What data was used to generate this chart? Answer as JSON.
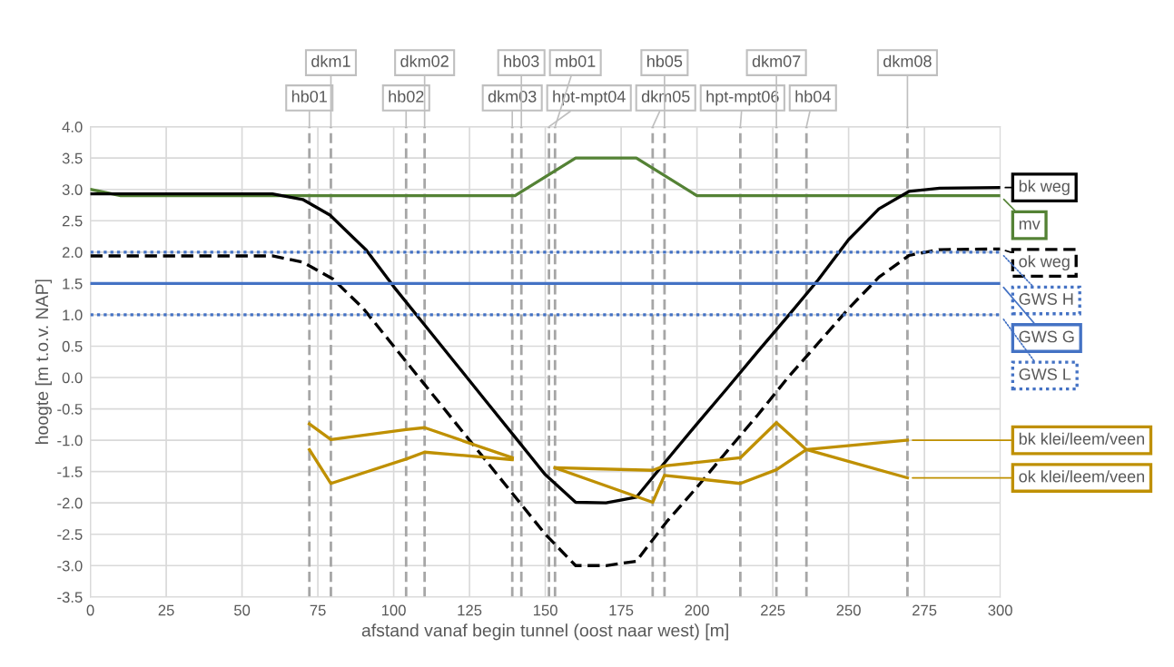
{
  "chart_data": {
    "type": "line",
    "xlabel": "afstand vanaf begin tunnel (oost naar west) [m]",
    "ylabel": "hoogte [m t.o.v. NAP]",
    "xlim": [
      0,
      300
    ],
    "xticks": [
      0,
      25,
      50,
      75,
      100,
      125,
      150,
      175,
      200,
      225,
      250,
      275,
      300
    ],
    "ylim": [
      -3.5,
      4.0
    ],
    "yticks": [
      {
        "value": -3.5,
        "label": "-3.5"
      },
      {
        "value": -3.0,
        "label": "-3.0"
      },
      {
        "value": -2.5,
        "label": "-2.5"
      },
      {
        "value": -2.0,
        "label": "-2.0"
      },
      {
        "value": -1.5,
        "label": "-1.5"
      },
      {
        "value": -1.0,
        "label": "-1.0"
      },
      {
        "value": -0.5,
        "label": "-0.5"
      },
      {
        "value": 0,
        "label": "0.0"
      },
      {
        "value": 0.5,
        "label": "0.5"
      },
      {
        "value": 1.0,
        "label": "1.0"
      },
      {
        "value": 1.5,
        "label": "1.5"
      },
      {
        "value": 2.0,
        "label": "2.0"
      },
      {
        "value": 2.5,
        "label": "2.5"
      },
      {
        "value": 3.0,
        "label": "3.0"
      },
      {
        "value": 3.5,
        "label": "3.5"
      },
      {
        "value": 4.0,
        "label": "4.0"
      }
    ],
    "grid": true,
    "legend": "right",
    "series": [
      {
        "name": "mv",
        "color": "#548235",
        "line_style": "solid",
        "x": [
          0,
          10,
          140,
          160,
          180,
          200,
          300
        ],
        "values": [
          3.0,
          2.9,
          2.9,
          3.5,
          3.5,
          2.9,
          2.9
        ]
      },
      {
        "name": "bk weg",
        "color": "#000000",
        "line_style": "solid",
        "x": [
          0,
          60,
          70,
          79,
          91,
          100,
          110,
          120,
          130,
          140,
          150,
          160,
          170,
          180,
          190,
          200,
          210,
          220,
          230,
          240,
          250,
          260,
          270,
          280,
          300
        ],
        "values": [
          2.93,
          2.93,
          2.84,
          2.59,
          2.03,
          1.45,
          0.85,
          0.25,
          -0.35,
          -0.95,
          -1.55,
          -1.99,
          -2.0,
          -1.91,
          -1.32,
          -0.74,
          -0.17,
          0.41,
          0.98,
          1.56,
          2.2,
          2.69,
          2.97,
          3.02,
          3.03
        ]
      },
      {
        "name": "ok weg",
        "color": "#000000",
        "line_style": "dashed",
        "x": [
          0,
          60,
          70,
          80,
          90,
          100,
          110,
          120,
          130,
          140,
          150,
          160,
          170,
          180,
          190,
          200,
          210,
          220,
          230,
          240,
          250,
          260,
          270,
          280,
          300
        ],
        "values": [
          1.94,
          1.94,
          1.84,
          1.57,
          1.1,
          0.5,
          -0.1,
          -0.7,
          -1.3,
          -1.9,
          -2.5,
          -3.0,
          -3.0,
          -2.93,
          -2.3,
          -1.75,
          -1.17,
          -0.6,
          0.0,
          0.55,
          1.1,
          1.6,
          1.95,
          2.04,
          2.05
        ]
      },
      {
        "name": "GWS H",
        "color": "#4472c4",
        "line_style": "dotted",
        "x": [
          0,
          300
        ],
        "values": [
          2.0,
          2.0
        ]
      },
      {
        "name": "GWS G",
        "color": "#4472c4",
        "line_style": "solid",
        "x": [
          0,
          300
        ],
        "values": [
          1.5,
          1.5
        ]
      },
      {
        "name": "GWS L",
        "color": "#4472c4",
        "line_style": "dotted",
        "x": [
          0,
          300
        ],
        "values": [
          1.0,
          1.0
        ]
      },
      {
        "name": "bk klei/leem/veen",
        "color": "#bf9000",
        "line_style": "solid",
        "x": [
          72.2,
          79.3,
          104.1,
          110.2,
          139.1,
          142.1,
          151.2,
          153.2,
          185.4,
          189.3,
          214.3,
          226.2,
          236.1,
          269.4
        ],
        "values": [
          -0.74,
          -0.99,
          -0.83,
          -0.8,
          -1.28,
          null,
          null,
          -1.44,
          -1.48,
          -1.41,
          -1.28,
          -0.72,
          -1.15,
          -1.0
        ]
      },
      {
        "name": "ok klei/leem/veen",
        "color": "#bf9000",
        "line_style": "solid",
        "x": [
          72.2,
          79.3,
          104.1,
          110.2,
          139.1,
          142.1,
          151.2,
          153.2,
          185.4,
          189.3,
          214.3,
          226.2,
          236.1,
          269.4
        ],
        "values": [
          -1.15,
          -1.69,
          -1.3,
          -1.19,
          -1.31,
          null,
          null,
          -1.44,
          -1.99,
          -1.56,
          -1.69,
          -1.47,
          -1.15,
          -1.6
        ]
      }
    ],
    "ref_lines": [
      {
        "axis": "x",
        "value": 72.2,
        "label": "hb01",
        "color": "#a6a6a6",
        "line_style": "dashed"
      },
      {
        "axis": "x",
        "value": 79.3,
        "label": "dkm1",
        "color": "#a6a6a6",
        "line_style": "dashed"
      },
      {
        "axis": "x",
        "value": 104.1,
        "label": "hb02",
        "color": "#a6a6a6",
        "line_style": "dashed"
      },
      {
        "axis": "x",
        "value": 110.2,
        "label": "dkm02",
        "color": "#a6a6a6",
        "line_style": "dashed"
      },
      {
        "axis": "x",
        "value": 139.1,
        "label": "dkm03",
        "color": "#a6a6a6",
        "line_style": "dashed"
      },
      {
        "axis": "x",
        "value": 142.1,
        "label": "hb03",
        "color": "#a6a6a6",
        "line_style": "dashed"
      },
      {
        "axis": "x",
        "value": 151.2,
        "label": "hpt-mpt04",
        "color": "#a6a6a6",
        "line_style": "dashed"
      },
      {
        "axis": "x",
        "value": 153.2,
        "label": "mb01",
        "color": "#a6a6a6",
        "line_style": "dashed"
      },
      {
        "axis": "x",
        "value": 185.4,
        "label": "dkm05",
        "color": "#a6a6a6",
        "line_style": "dashed"
      },
      {
        "axis": "x",
        "value": 189.3,
        "label": "hb05",
        "color": "#a6a6a6",
        "line_style": "dashed"
      },
      {
        "axis": "x",
        "value": 214.3,
        "label": "hpt-mpt06",
        "color": "#a6a6a6",
        "line_style": "dashed"
      },
      {
        "axis": "x",
        "value": 226.2,
        "label": "dkm07",
        "color": "#a6a6a6",
        "line_style": "dashed"
      },
      {
        "axis": "x",
        "value": 236.1,
        "label": "hb04",
        "color": "#a6a6a6",
        "line_style": "dashed"
      },
      {
        "axis": "x",
        "value": 269.4,
        "label": "dkm08",
        "color": "#a6a6a6",
        "line_style": "dashed"
      }
    ]
  }
}
